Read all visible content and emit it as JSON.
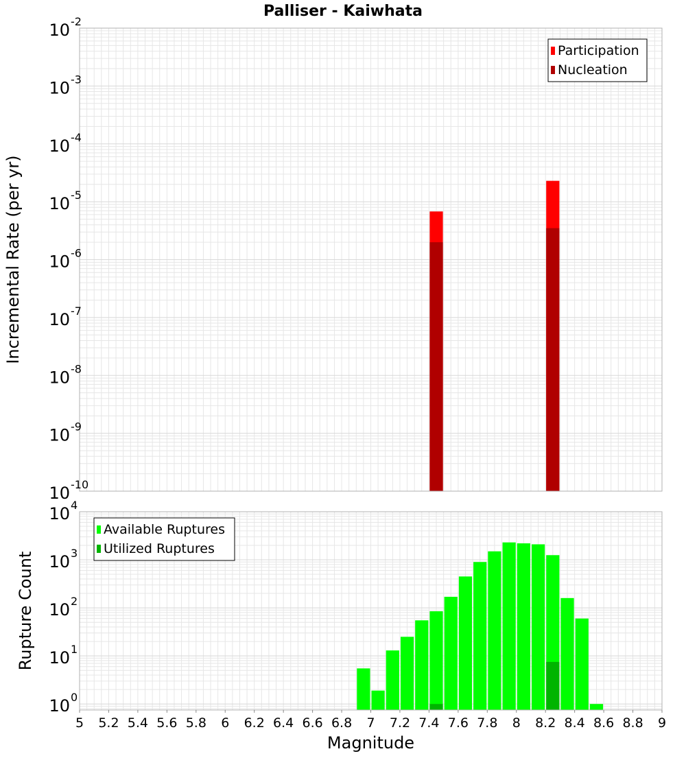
{
  "title": "Palliser - Kaiwhata",
  "colors": {
    "participation": "#ff0000",
    "nucleation": "#b00000",
    "available": "#00ff00",
    "utilized": "#00b400",
    "grid": "#e6e6e6",
    "frame": "#b0b0b0"
  },
  "chart_data": [
    {
      "type": "bar",
      "title": "Palliser - Kaiwhata",
      "ylabel": "Incremental Rate (per yr)",
      "xlabel": "",
      "yscale": "log",
      "xlim": [
        5,
        9
      ],
      "ylim": [
        1e-10,
        0.01
      ],
      "y_ticks": [
        {
          "base": "10",
          "exp": "-10"
        },
        {
          "base": "10",
          "exp": "-9"
        },
        {
          "base": "10",
          "exp": "-8"
        },
        {
          "base": "10",
          "exp": "-7"
        },
        {
          "base": "10",
          "exp": "-6"
        },
        {
          "base": "10",
          "exp": "-5"
        },
        {
          "base": "10",
          "exp": "-4"
        },
        {
          "base": "10",
          "exp": "-3"
        },
        {
          "base": "10",
          "exp": "-2"
        }
      ],
      "bar_width": 0.1,
      "legend_position": "top-right",
      "series": [
        {
          "name": "Participation",
          "x": [
            7.45,
            8.25
          ],
          "y": [
            6.8e-06,
            2.3e-05
          ]
        },
        {
          "name": "Nucleation",
          "x": [
            7.45,
            8.25
          ],
          "y": [
            2e-06,
            3.5e-06
          ]
        }
      ],
      "grid": true
    },
    {
      "type": "bar",
      "title": "",
      "ylabel": "Rupture Count",
      "xlabel": "Magnitude",
      "yscale": "log",
      "xlim": [
        5,
        9
      ],
      "ylim": [
        0.75,
        10000
      ],
      "y_ticks": [
        {
          "base": "10",
          "exp": "0"
        },
        {
          "base": "10",
          "exp": "1"
        },
        {
          "base": "10",
          "exp": "2"
        },
        {
          "base": "10",
          "exp": "3"
        },
        {
          "base": "10",
          "exp": "4"
        }
      ],
      "x_ticks": [
        "5",
        "5.2",
        "5.4",
        "5.6",
        "5.8",
        "6",
        "6.2",
        "6.4",
        "6.6",
        "6.8",
        "7",
        "7.2",
        "7.4",
        "7.6",
        "7.8",
        "8",
        "8.2",
        "8.4",
        "8.6",
        "8.8",
        "9"
      ],
      "bar_width": 0.1,
      "legend_position": "top-left",
      "series": [
        {
          "name": "Available Ruptures",
          "x": [
            6.95,
            7.05,
            7.15,
            7.25,
            7.35,
            7.45,
            7.55,
            7.65,
            7.75,
            7.85,
            7.95,
            8.05,
            8.15,
            8.25,
            8.35,
            8.45,
            8.55
          ],
          "y": [
            5.5,
            1.9,
            13,
            25,
            55,
            85,
            170,
            450,
            900,
            1500,
            2300,
            2200,
            2100,
            1250,
            160,
            60,
            1
          ]
        },
        {
          "name": "Utilized Ruptures",
          "x": [
            7.45,
            8.25
          ],
          "y": [
            1,
            7.5
          ]
        }
      ],
      "grid": true
    }
  ]
}
